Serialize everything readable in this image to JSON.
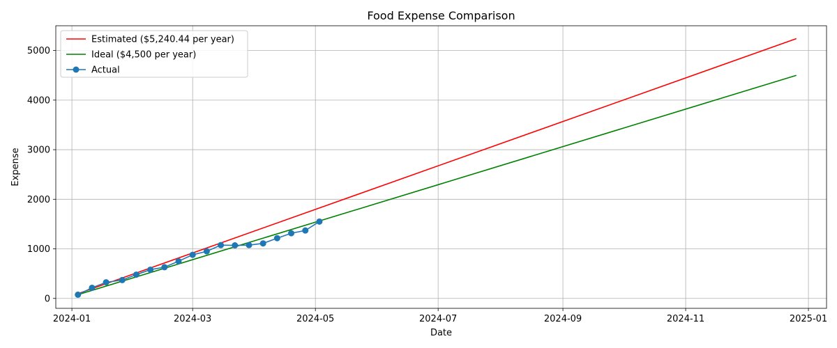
{
  "chart_data": {
    "type": "line",
    "title": "Food Expense Comparison",
    "xlabel": "Date",
    "ylabel": "Expense",
    "xlim": [
      "2023-12-24",
      "2025-01-10"
    ],
    "ylim": [
      -200,
      5500
    ],
    "x_ticks": [
      "2024-01",
      "2024-03",
      "2024-05",
      "2024-07",
      "2024-09",
      "2024-11",
      "2025-01"
    ],
    "y_ticks": [
      0,
      1000,
      2000,
      3000,
      4000,
      5000
    ],
    "grid": true,
    "legend_position": "upper-left",
    "series": [
      {
        "name": "Estimated ($5,240.44 per year)",
        "color": "#ff0000",
        "marker": "none",
        "points": [
          {
            "x": "2024-01-04",
            "y": 95
          },
          {
            "x": "2024-12-26",
            "y": 5240
          }
        ]
      },
      {
        "name": "Ideal ($4,500 per year)",
        "color": "#008000",
        "marker": "none",
        "points": [
          {
            "x": "2024-01-04",
            "y": 75
          },
          {
            "x": "2024-12-26",
            "y": 4500
          }
        ]
      },
      {
        "name": "Actual",
        "color": "#1f77b4",
        "marker": "circle",
        "points": [
          {
            "x": "2024-01-04",
            "y": 75
          },
          {
            "x": "2024-01-11",
            "y": 215
          },
          {
            "x": "2024-01-18",
            "y": 325
          },
          {
            "x": "2024-01-26",
            "y": 370
          },
          {
            "x": "2024-02-02",
            "y": 480
          },
          {
            "x": "2024-02-09",
            "y": 580
          },
          {
            "x": "2024-02-16",
            "y": 630
          },
          {
            "x": "2024-02-23",
            "y": 750
          },
          {
            "x": "2024-03-01",
            "y": 880
          },
          {
            "x": "2024-03-08",
            "y": 950
          },
          {
            "x": "2024-03-15",
            "y": 1075
          },
          {
            "x": "2024-03-22",
            "y": 1070
          },
          {
            "x": "2024-03-29",
            "y": 1075
          },
          {
            "x": "2024-04-05",
            "y": 1110
          },
          {
            "x": "2024-04-12",
            "y": 1215
          },
          {
            "x": "2024-04-19",
            "y": 1315
          },
          {
            "x": "2024-04-26",
            "y": 1370
          },
          {
            "x": "2024-05-03",
            "y": 1550
          }
        ]
      }
    ]
  }
}
